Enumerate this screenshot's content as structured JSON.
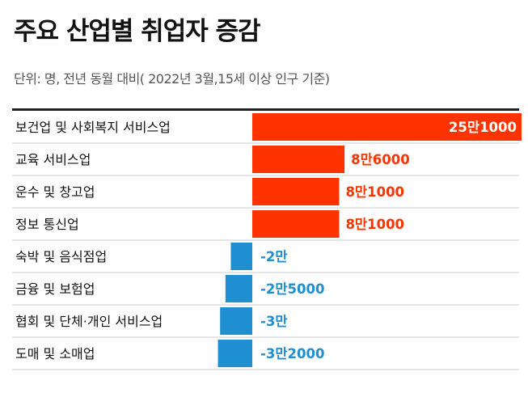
{
  "header": {
    "title": "주요 산업별 취업자 증감",
    "subtitle": "단위: 명, 전년 동월 대비( 2022년 3월,15세 이상 인구 기준)"
  },
  "colors": {
    "positive": "#ff3300",
    "negative": "#1e8fd0",
    "inside_label": "#ffffff",
    "rule": "#222222",
    "row_divider": "#cccccc"
  },
  "chart_data": {
    "type": "bar",
    "orientation": "horizontal",
    "unit": "명",
    "categories": [
      "보건업 및 사회복지 서비스업",
      "교육 서비스업",
      "운수 및 창고업",
      "정보 통신업",
      "숙박 및 음식점업",
      "금융 및 보험업",
      "협회 및 단체·개인 서비스업",
      "도매 및 소매업"
    ],
    "values": [
      251000,
      86000,
      81000,
      81000,
      -20000,
      -25000,
      -30000,
      -32000
    ],
    "value_labels": [
      "25만1000",
      "8만6000",
      "8만1000",
      "8만1000",
      "-2만",
      "-2만5000",
      "-3만",
      "-3만2000"
    ],
    "grid": false
  }
}
